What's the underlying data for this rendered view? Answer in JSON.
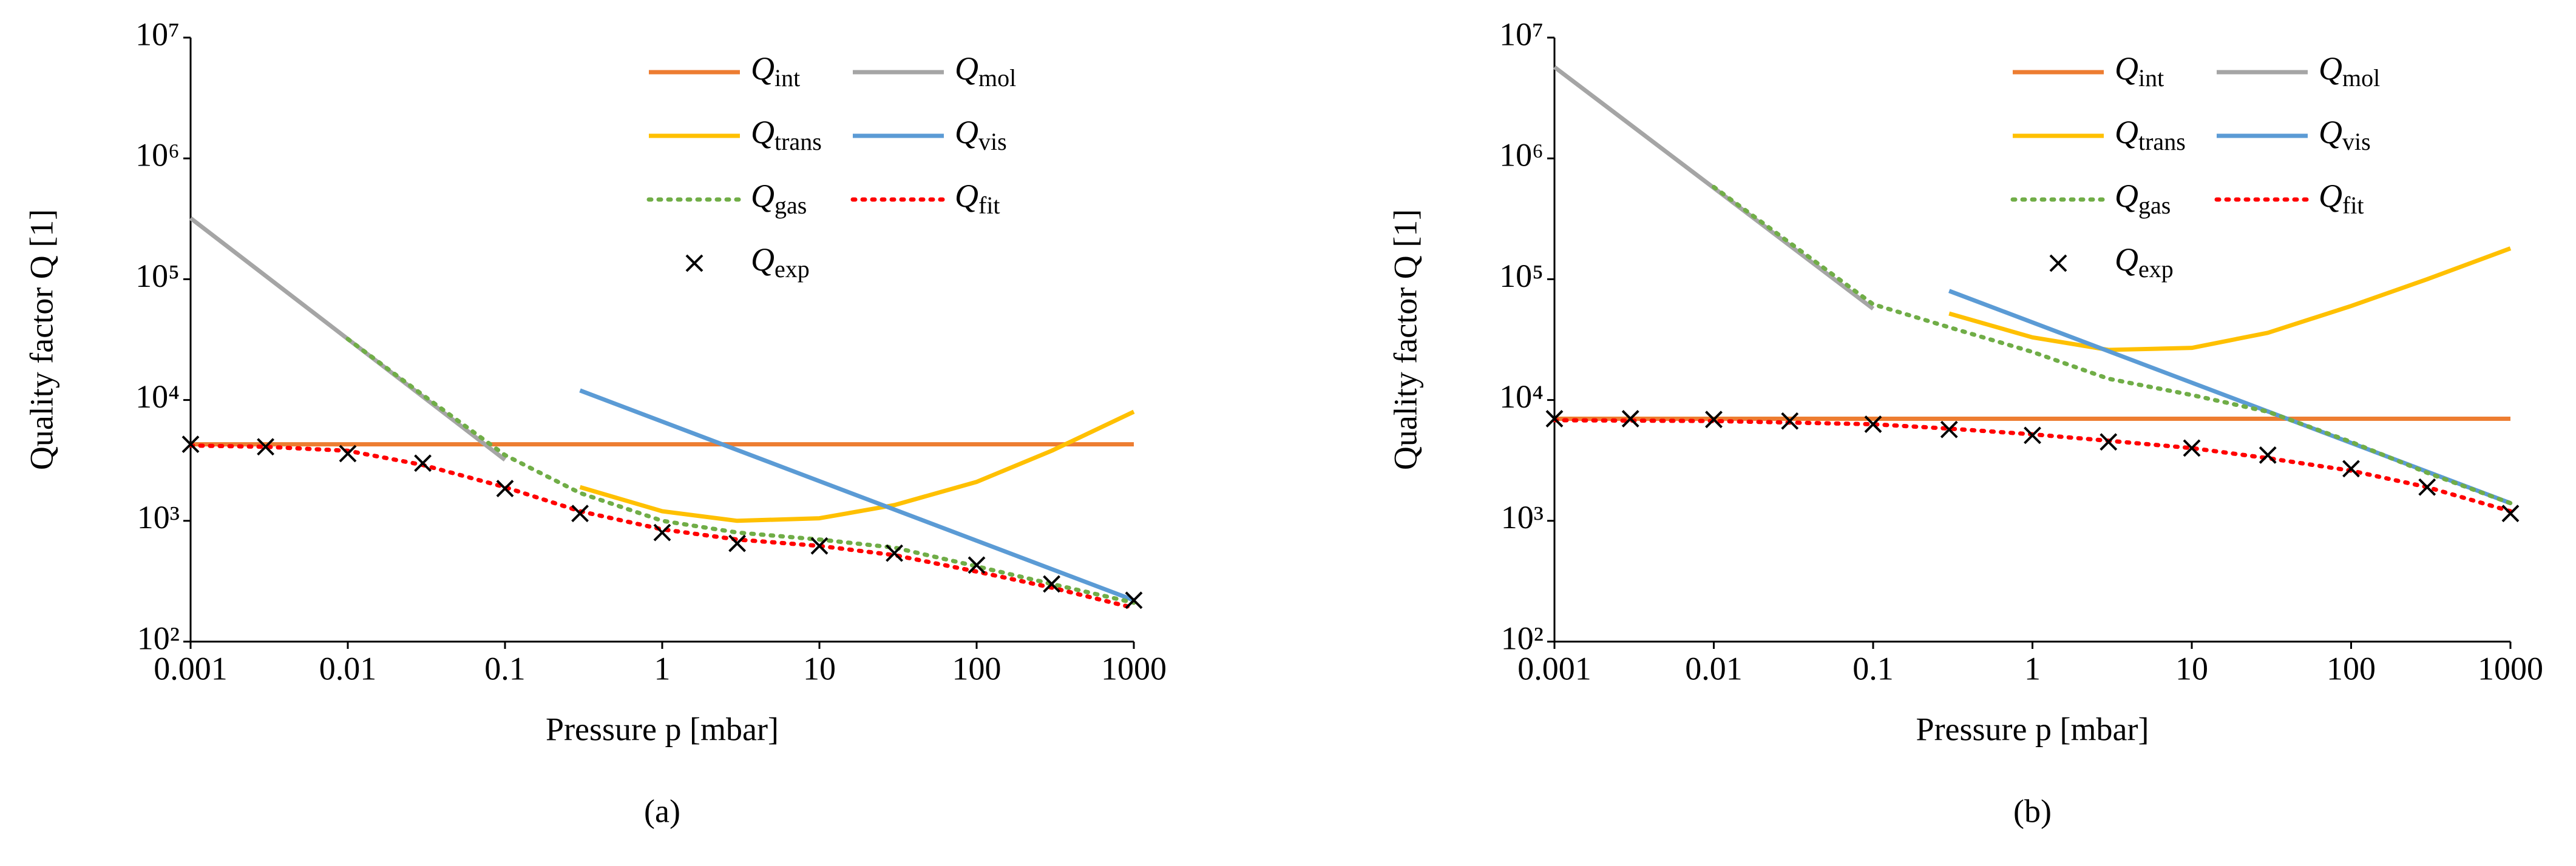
{
  "chart_data": [
    {
      "type": "line",
      "label": "(a)",
      "xlabel": "Pressure p [mbar]",
      "ylabel": "Quality factor Q [1]",
      "xscale": "log",
      "yscale": "log",
      "legend": "upper right",
      "xlim": [
        0.001,
        1000
      ],
      "ylim": [
        100,
        10000000
      ],
      "xticks": [
        0.001,
        0.01,
        0.1,
        1,
        10,
        100,
        1000
      ],
      "yticks": [
        {
          "value": 100,
          "label": "10²"
        },
        {
          "value": 1000,
          "label": "10³"
        },
        {
          "value": 10000,
          "label": "10⁴"
        },
        {
          "value": 100000,
          "label": "10⁵"
        },
        {
          "value": 1000000,
          "label": "10⁶"
        },
        {
          "value": 10000000,
          "label": "10⁷"
        }
      ],
      "series": [
        {
          "name": "Qint",
          "color": "#ED7D31",
          "x": [
            0.001,
            1000
          ],
          "values": [
            4300,
            4300
          ]
        },
        {
          "name": "Qmol",
          "color": "#A5A5A5",
          "x": [
            0.001,
            0.01,
            0.1
          ],
          "values": [
            320000,
            32000,
            3200
          ]
        },
        {
          "name": "Qtrans",
          "color": "#FFC000",
          "x": [
            0.3,
            1,
            3,
            10,
            30,
            100,
            300,
            1000
          ],
          "values": [
            1900,
            1200,
            1000,
            1050,
            1350,
            2100,
            3800,
            8000
          ]
        },
        {
          "name": "Qvis",
          "color": "#5B9BD5",
          "x": [
            0.3,
            1000
          ],
          "values": [
            12000,
            220
          ]
        },
        {
          "name": "Qgas",
          "color": "#70AD47",
          "dotted": true,
          "x": [
            0.01,
            0.03,
            0.1,
            0.3,
            1,
            3,
            10,
            30,
            100,
            300,
            1000
          ],
          "values": [
            32000,
            11000,
            3500,
            1700,
            1000,
            800,
            700,
            600,
            420,
            300,
            210
          ]
        },
        {
          "name": "Qfit",
          "color": "#FF0000",
          "dotted": true,
          "x": [
            0.001,
            0.003,
            0.01,
            0.03,
            0.1,
            0.3,
            1,
            3,
            10,
            30,
            100,
            300,
            1000
          ],
          "values": [
            4200,
            4100,
            3800,
            2900,
            1900,
            1200,
            850,
            700,
            620,
            520,
            380,
            280,
            190
          ]
        },
        {
          "name": "Qexp",
          "color": "#000000",
          "marker": "x",
          "x": [
            0.001,
            0.003,
            0.01,
            0.03,
            0.1,
            0.3,
            1,
            3,
            10,
            30,
            100,
            300,
            1000
          ],
          "values": [
            4300,
            4100,
            3600,
            3000,
            1850,
            1150,
            800,
            650,
            620,
            540,
            430,
            300,
            220
          ]
        }
      ]
    },
    {
      "type": "line",
      "label": "(b)",
      "xlabel": "Pressure p [mbar]",
      "ylabel": "Quality factor Q [1]",
      "xscale": "log",
      "yscale": "log",
      "legend": "upper right",
      "xlim": [
        0.001,
        1000
      ],
      "ylim": [
        100,
        10000000
      ],
      "xticks": [
        0.001,
        0.01,
        0.1,
        1,
        10,
        100,
        1000
      ],
      "yticks": [
        {
          "value": 100,
          "label": "10²"
        },
        {
          "value": 1000,
          "label": "10³"
        },
        {
          "value": 10000,
          "label": "10⁴"
        },
        {
          "value": 100000,
          "label": "10⁵"
        },
        {
          "value": 1000000,
          "label": "10⁶"
        },
        {
          "value": 10000000,
          "label": "10⁷"
        }
      ],
      "series": [
        {
          "name": "Qint",
          "color": "#ED7D31",
          "x": [
            0.001,
            1000
          ],
          "values": [
            7000,
            7000
          ]
        },
        {
          "name": "Qmol",
          "color": "#A5A5A5",
          "x": [
            0.001,
            0.01,
            0.1
          ],
          "values": [
            5700000,
            570000,
            57000
          ]
        },
        {
          "name": "Qtrans",
          "color": "#FFC000",
          "x": [
            0.3,
            1,
            3,
            10,
            30,
            100,
            300,
            1000
          ],
          "values": [
            52000,
            33000,
            26000,
            27000,
            36000,
            60000,
            100000,
            180000
          ]
        },
        {
          "name": "Qvis",
          "color": "#5B9BD5",
          "x": [
            0.3,
            1000
          ],
          "values": [
            80000,
            1400
          ]
        },
        {
          "name": "Qgas",
          "color": "#70AD47",
          "dotted": true,
          "x": [
            0.01,
            0.03,
            0.1,
            0.3,
            1,
            3,
            10,
            30,
            100,
            300,
            1000
          ],
          "values": [
            580000,
            200000,
            62000,
            40000,
            25000,
            15000,
            11000,
            8000,
            4500,
            2500,
            1400
          ]
        },
        {
          "name": "Qfit",
          "color": "#FF0000",
          "dotted": true,
          "x": [
            0.001,
            0.01,
            0.1,
            0.3,
            1,
            3,
            10,
            30,
            100,
            300,
            1000
          ],
          "values": [
            6800,
            6700,
            6300,
            5800,
            5200,
            4600,
            4000,
            3300,
            2600,
            1900,
            1200
          ]
        },
        {
          "name": "Qexp",
          "color": "#000000",
          "marker": "x",
          "x": [
            0.001,
            0.003,
            0.01,
            0.03,
            0.1,
            0.3,
            1,
            3,
            10,
            30,
            100,
            300,
            1000
          ],
          "values": [
            7000,
            7000,
            6900,
            6700,
            6300,
            5700,
            5100,
            4500,
            4000,
            3500,
            2700,
            1900,
            1150
          ]
        }
      ]
    }
  ]
}
